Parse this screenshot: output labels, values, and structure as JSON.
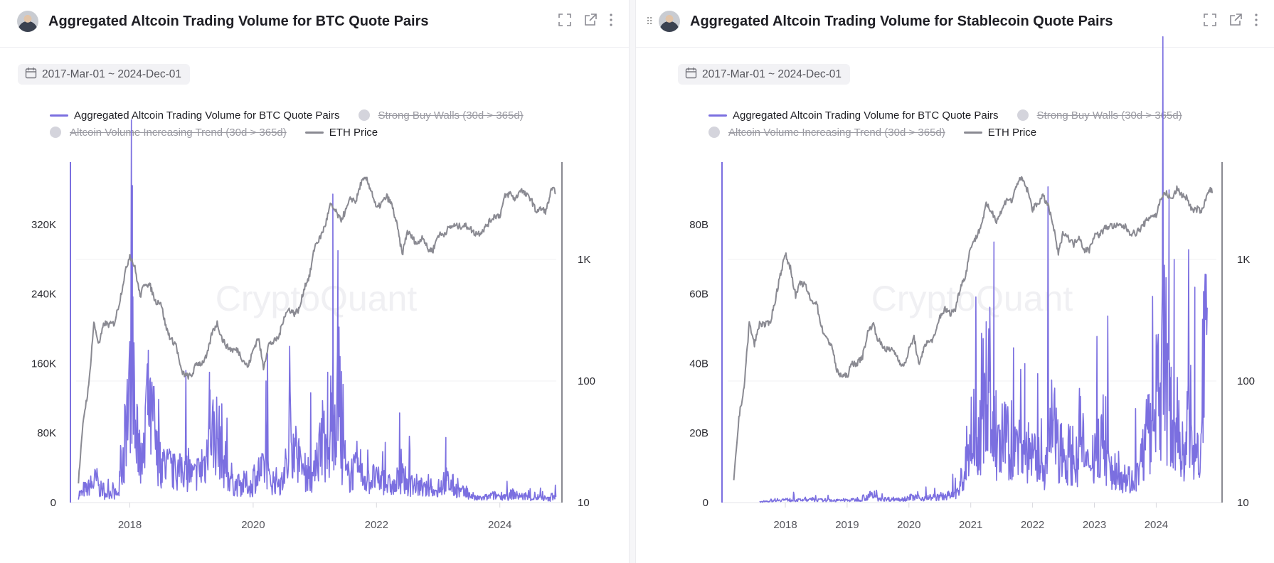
{
  "colors": {
    "volume": "#7b6fe0",
    "eth": "#8a8a92",
    "disabled": "#d4d4dc",
    "grid": "#f0f0f3"
  },
  "watermark": "CryptoQuant",
  "panels": [
    {
      "title": "Aggregated Altcoin Trading Volume for BTC Quote Pairs",
      "date_range": "2017-Mar-01 ~ 2024-Dec-01",
      "legend": [
        {
          "label": "Aggregated Altcoin Trading Volume for BTC Quote Pairs",
          "active": true,
          "icon": "line"
        },
        {
          "label": "Strong Buy Walls (30d > 365d)",
          "active": false,
          "icon": "dot"
        },
        {
          "label": "Altcoin Volume Increasing Trend (30d > 365d)",
          "active": false,
          "icon": "dot"
        },
        {
          "label": "ETH Price",
          "active": true,
          "icon": "line"
        }
      ]
    },
    {
      "title": "Aggregated Altcoin Trading Volume for Stablecoin Quote Pairs",
      "date_range": "2017-Mar-01 ~ 2024-Dec-01",
      "legend": [
        {
          "label": "Aggregated Altcoin Trading Volume for BTC Quote Pairs",
          "active": true,
          "icon": "line"
        },
        {
          "label": "Strong Buy Walls (30d > 365d)",
          "active": false,
          "icon": "dot"
        },
        {
          "label": "Altcoin Volume Increasing Trend (30d > 365d)",
          "active": false,
          "icon": "dot"
        },
        {
          "label": "ETH Price",
          "active": true,
          "icon": "line"
        }
      ]
    }
  ],
  "chart_data": [
    {
      "type": "line",
      "title": "Aggregated Altcoin Trading Volume for BTC Quote Pairs",
      "x_start": "2017-03",
      "x_step": "month",
      "x_ticks": [
        "2018",
        "2020",
        "2022",
        "2024"
      ],
      "y_left": {
        "scale": "linear",
        "ticks": [
          "0",
          "80K",
          "160K",
          "240K",
          "320K"
        ],
        "tick_values": [
          0,
          80000,
          160000,
          240000,
          320000
        ],
        "range": [
          0,
          392000
        ]
      },
      "y_right": {
        "scale": "log",
        "ticks": [
          "10",
          "100",
          "1K"
        ],
        "tick_values": [
          10,
          100,
          1000
        ],
        "range": [
          10,
          6300
        ]
      },
      "grid": true,
      "legend_position": "top-left",
      "series": [
        {
          "name": "Aggregated Altcoin Trading Volume for BTC Quote Pairs",
          "axis": "left",
          "unit": "K",
          "values": [
            10,
            15,
            20,
            25,
            15,
            10,
            12,
            10,
            40,
            110,
            150,
            70,
            50,
            110,
            90,
            55,
            45,
            40,
            35,
            35,
            40,
            35,
            30,
            35,
            45,
            90,
            80,
            70,
            45,
            30,
            20,
            20,
            22,
            18,
            30,
            35,
            40,
            25,
            25,
            22,
            40,
            80,
            60,
            40,
            35,
            30,
            60,
            80,
            50,
            100,
            110,
            50,
            30,
            35,
            35,
            30,
            25,
            28,
            25,
            25,
            20,
            18,
            25,
            25,
            20,
            20,
            18,
            15,
            20,
            12,
            20,
            25,
            20,
            15,
            12,
            10,
            8,
            5,
            5,
            6,
            8,
            8,
            8,
            7,
            10,
            8,
            7,
            6,
            5,
            6,
            5,
            4,
            8
          ],
          "spikes": [
            [
              "2018-01",
              365
            ],
            [
              "2018-04",
              160
            ],
            [
              "2019-04",
              150
            ],
            [
              "2020-03",
              140
            ],
            [
              "2021-03",
              150
            ],
            [
              "2021-05",
              290
            ],
            [
              "2021-04",
              170
            ],
            [
              "2022-07",
              60
            ],
            [
              "2023-02",
              75
            ]
          ]
        },
        {
          "name": "ETH Price",
          "axis": "right",
          "values": [
            15,
            50,
            90,
            300,
            200,
            300,
            290,
            300,
            450,
            750,
            1100,
            850,
            500,
            650,
            600,
            450,
            450,
            280,
            220,
            200,
            120,
            110,
            110,
            140,
            140,
            160,
            250,
            300,
            220,
            190,
            180,
            180,
            150,
            130,
            180,
            230,
            130,
            200,
            210,
            230,
            340,
            390,
            360,
            390,
            600,
            740,
            1300,
            1500,
            1900,
            2800,
            2500,
            2100,
            2500,
            3200,
            3000,
            4300,
            4600,
            3700,
            2600,
            2900,
            3300,
            2800,
            1900,
            1100,
            1700,
            1500,
            1330,
            1570,
            1200,
            1200,
            1600,
            1600,
            1800,
            1900,
            1870,
            1900,
            1850,
            1650,
            1650,
            1800,
            2050,
            2300,
            2300,
            3300,
            3500,
            3100,
            3800,
            3400,
            3200,
            2500,
            2600,
            2500,
            3700
          ]
        }
      ]
    },
    {
      "type": "line",
      "title": "Aggregated Altcoin Trading Volume for Stablecoin Quote Pairs",
      "x_start": "2017-03",
      "x_step": "month",
      "x_ticks": [
        "2018",
        "2019",
        "2020",
        "2021",
        "2022",
        "2023",
        "2024"
      ],
      "y_left": {
        "scale": "linear",
        "ticks": [
          "0",
          "20B",
          "40B",
          "60B",
          "80B"
        ],
        "tick_values": [
          0,
          20,
          40,
          60,
          80
        ],
        "range": [
          0,
          98
        ]
      },
      "y_right": {
        "scale": "log",
        "ticks": [
          "10",
          "100",
          "1K"
        ],
        "tick_values": [
          10,
          100,
          1000
        ],
        "range": [
          10,
          6300
        ]
      },
      "grid": true,
      "legend_position": "top-left",
      "series": [
        {
          "name": "Aggregated Altcoin Trading Volume for BTC Quote Pairs",
          "axis": "left",
          "unit": "B",
          "start": "2017-08",
          "values": [
            0.2,
            0.4,
            0.6,
            0.8,
            0.8,
            0.8,
            0.7,
            0.7,
            0.8,
            0.8,
            0.8,
            0.7,
            0.7,
            0.7,
            0.6,
            0.6,
            0.7,
            0.7,
            0.8,
            1,
            1.5,
            2,
            1.5,
            1.2,
            1,
            1,
            1,
            1,
            1.2,
            1.5,
            1.5,
            1.2,
            1.5,
            1.5,
            1.5,
            1.8,
            2,
            2,
            3,
            6,
            15,
            20,
            18,
            30,
            35,
            20,
            15,
            18,
            17,
            15,
            18,
            15,
            15,
            12,
            12,
            10,
            22,
            20,
            15,
            14,
            14,
            12,
            20,
            10,
            14,
            16,
            20,
            12,
            8,
            10,
            8,
            7,
            6,
            8,
            15,
            20,
            18,
            30,
            45,
            28,
            22,
            18,
            15,
            25,
            12,
            15,
            40
          ],
          "spikes": [
            [
              "2021-04",
              50
            ],
            [
              "2021-05",
              75
            ],
            [
              "2021-11",
              40
            ],
            [
              "2024-03",
              90
            ],
            [
              "2024-04",
              70
            ],
            [
              "2024-08",
              62
            ],
            [
              "2024-11",
              76
            ]
          ]
        },
        {
          "name": "ETH Price",
          "axis": "right",
          "values": [
            15,
            50,
            90,
            300,
            200,
            300,
            290,
            300,
            450,
            750,
            1100,
            850,
            500,
            650,
            600,
            450,
            450,
            280,
            220,
            200,
            120,
            110,
            110,
            140,
            140,
            160,
            250,
            300,
            220,
            190,
            180,
            180,
            150,
            130,
            180,
            230,
            130,
            200,
            210,
            230,
            340,
            390,
            360,
            390,
            600,
            740,
            1300,
            1500,
            1900,
            2800,
            2500,
            2100,
            2500,
            3200,
            3000,
            4300,
            4600,
            3700,
            2600,
            2900,
            3300,
            2800,
            1900,
            1100,
            1700,
            1500,
            1330,
            1570,
            1200,
            1200,
            1600,
            1600,
            1800,
            1900,
            1870,
            1900,
            1850,
            1650,
            1650,
            1800,
            2050,
            2300,
            2300,
            3300,
            3500,
            3100,
            3800,
            3400,
            3200,
            2500,
            2600,
            2500,
            3700
          ]
        }
      ]
    }
  ]
}
